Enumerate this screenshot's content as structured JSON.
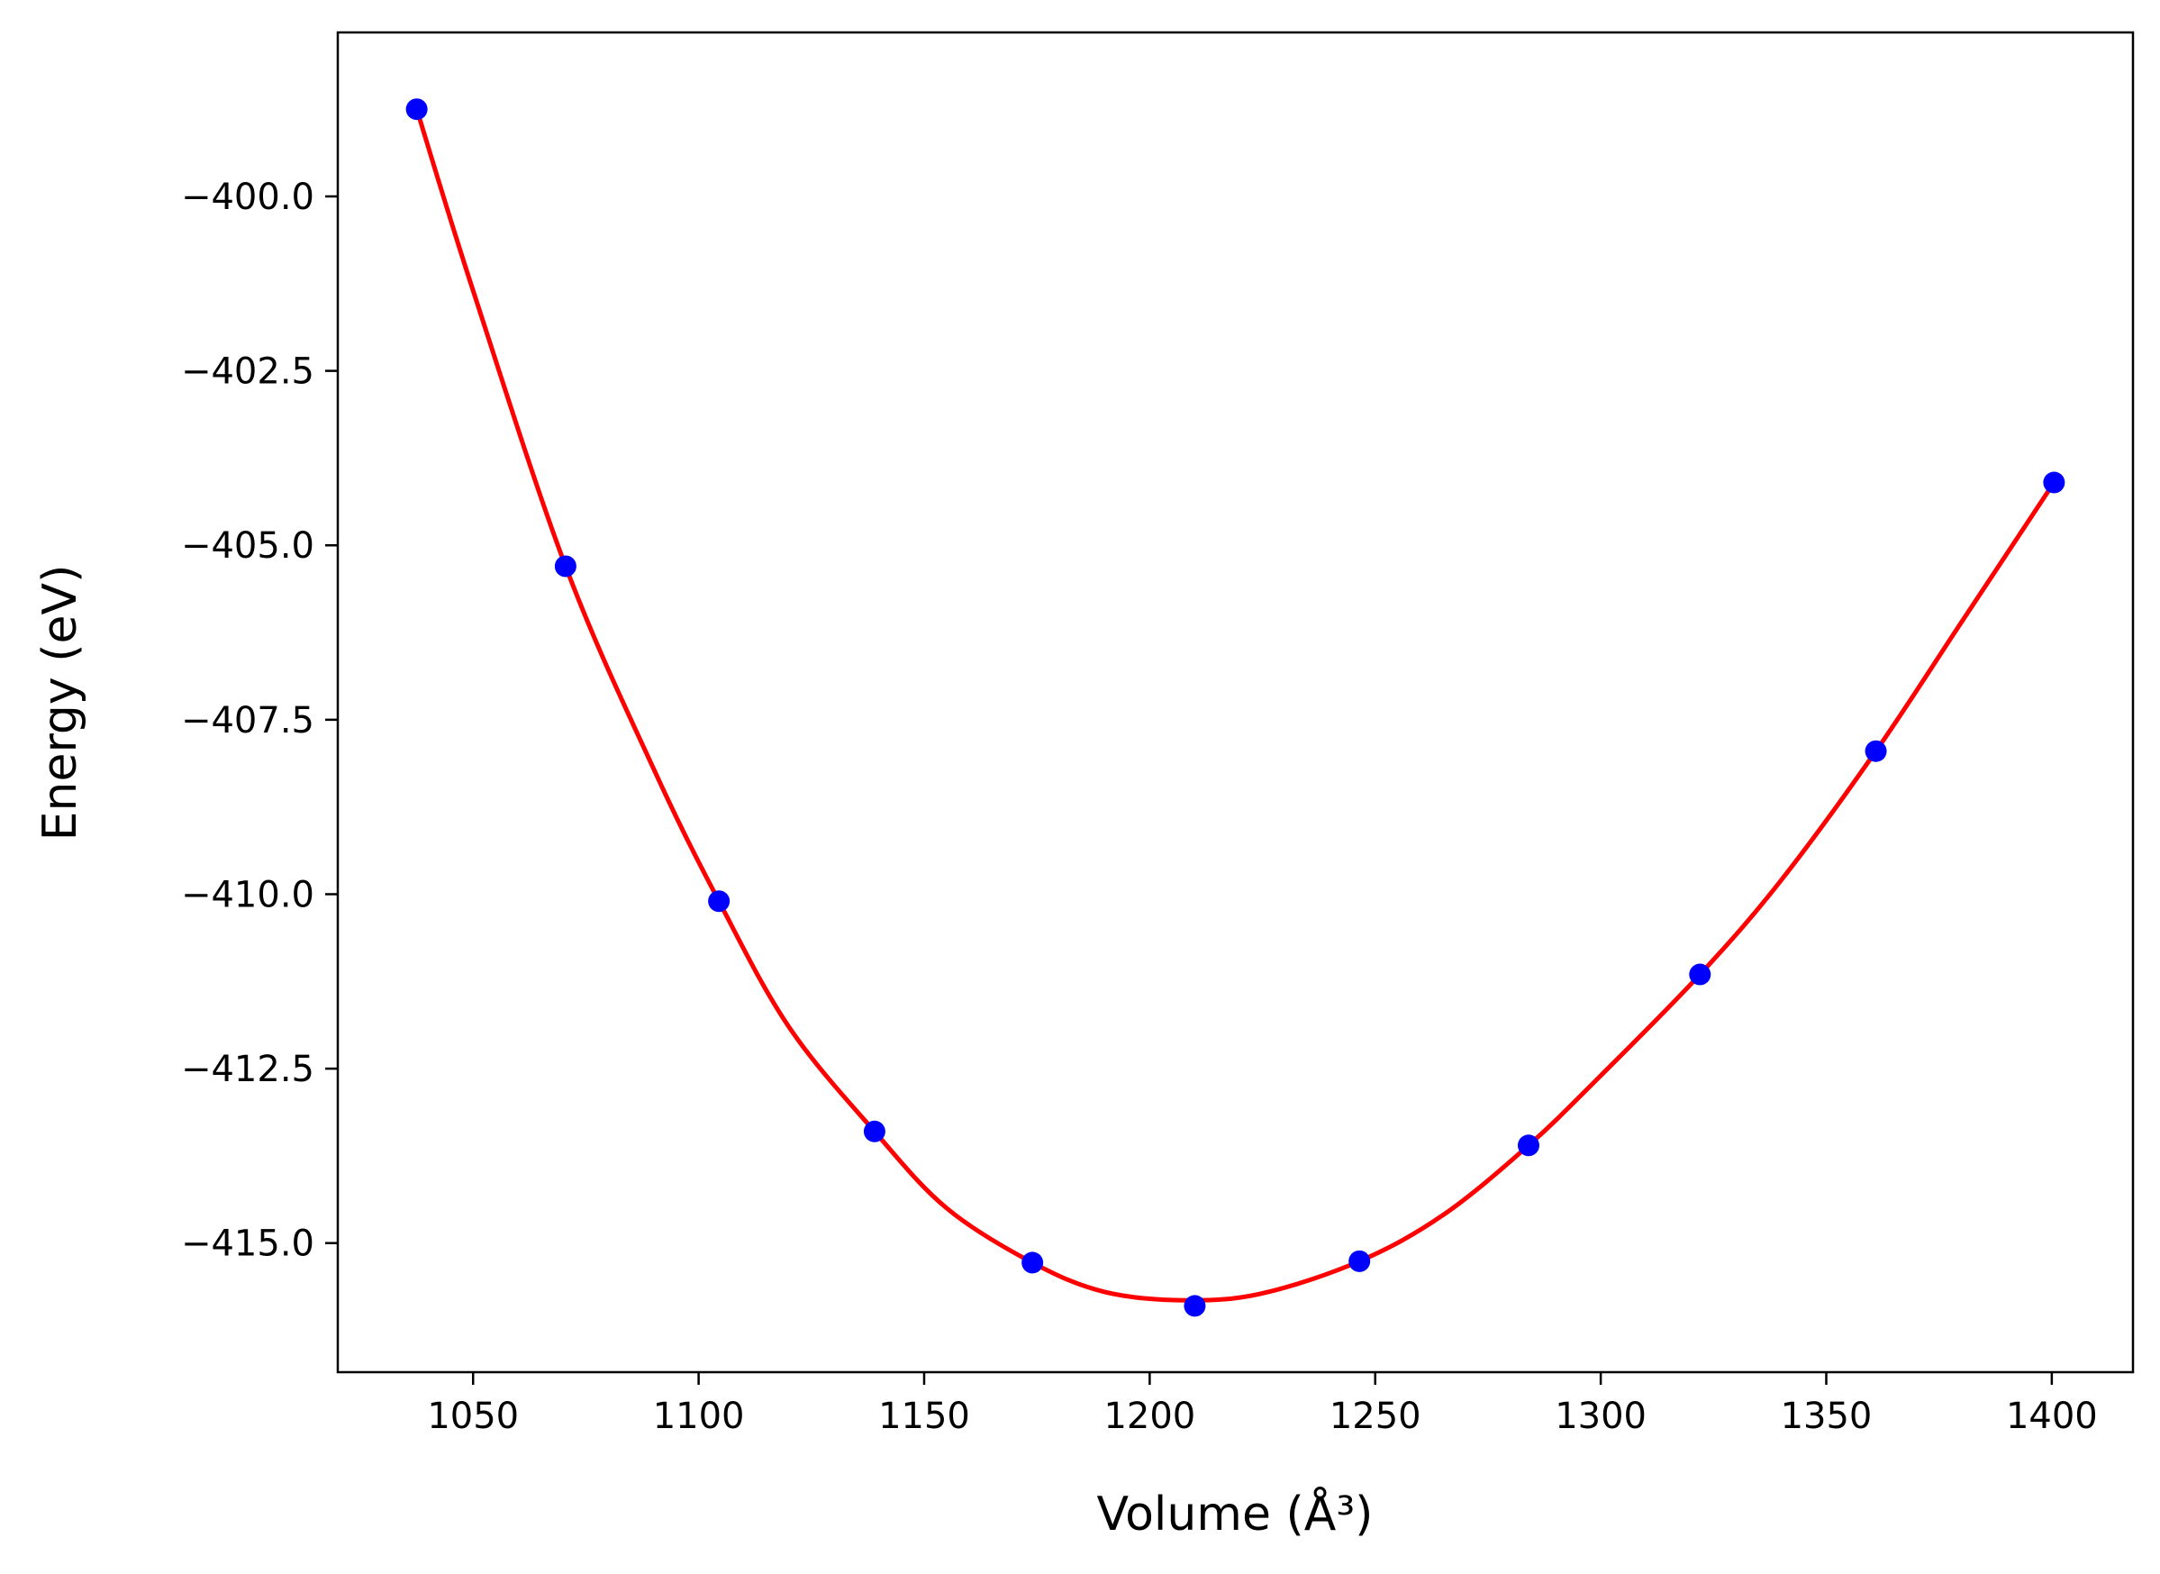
{
  "chart_data": {
    "type": "scatter",
    "title": "",
    "xlabel": "Volume (Å³)",
    "ylabel": "Energy (eV)",
    "xlim": [
      1020,
      1418
    ],
    "ylim": [
      -416.85,
      -397.65
    ],
    "xticks": [
      1050,
      1100,
      1150,
      1200,
      1250,
      1300,
      1350,
      1400
    ],
    "xtick_labels": [
      "1050",
      "1100",
      "1150",
      "1200",
      "1250",
      "1300",
      "1350",
      "1400"
    ],
    "yticks": [
      -400.0,
      -402.5,
      -405.0,
      -407.5,
      -410.0,
      -412.5,
      -415.0
    ],
    "ytick_labels": [
      "−400.0",
      "−402.5",
      "−405.0",
      "−407.5",
      "−410.0",
      "−412.5",
      "−415.0"
    ],
    "grid": false,
    "series": [
      {
        "type": "scatter",
        "color": "#0000ff",
        "x": [
          1037.5,
          1070.5,
          1104.5,
          1139.0,
          1174.0,
          1210.0,
          1246.5,
          1284.0,
          1322.0,
          1361.0,
          1400.5
        ],
        "y": [
          -398.75,
          -405.3,
          -410.1,
          -413.4,
          -415.28,
          -415.9,
          -415.26,
          -413.6,
          -411.15,
          -407.95,
          -404.1
        ]
      },
      {
        "type": "line",
        "color": "#ff0000",
        "x": [
          1037.5,
          1050,
          1070.5,
          1090,
          1104.5,
          1120,
          1139.0,
          1155,
          1174.0,
          1190,
          1208,
          1225,
          1246.5,
          1265,
          1284.0,
          1300,
          1322.0,
          1340,
          1361.0,
          1380,
          1400.5
        ],
        "y": [
          -398.75,
          -401.35,
          -405.3,
          -408.2,
          -410.1,
          -411.9,
          -413.4,
          -414.5,
          -415.28,
          -415.7,
          -415.82,
          -415.72,
          -415.26,
          -414.6,
          -413.6,
          -412.6,
          -411.15,
          -409.8,
          -407.95,
          -406.1,
          -404.1
        ]
      }
    ]
  }
}
